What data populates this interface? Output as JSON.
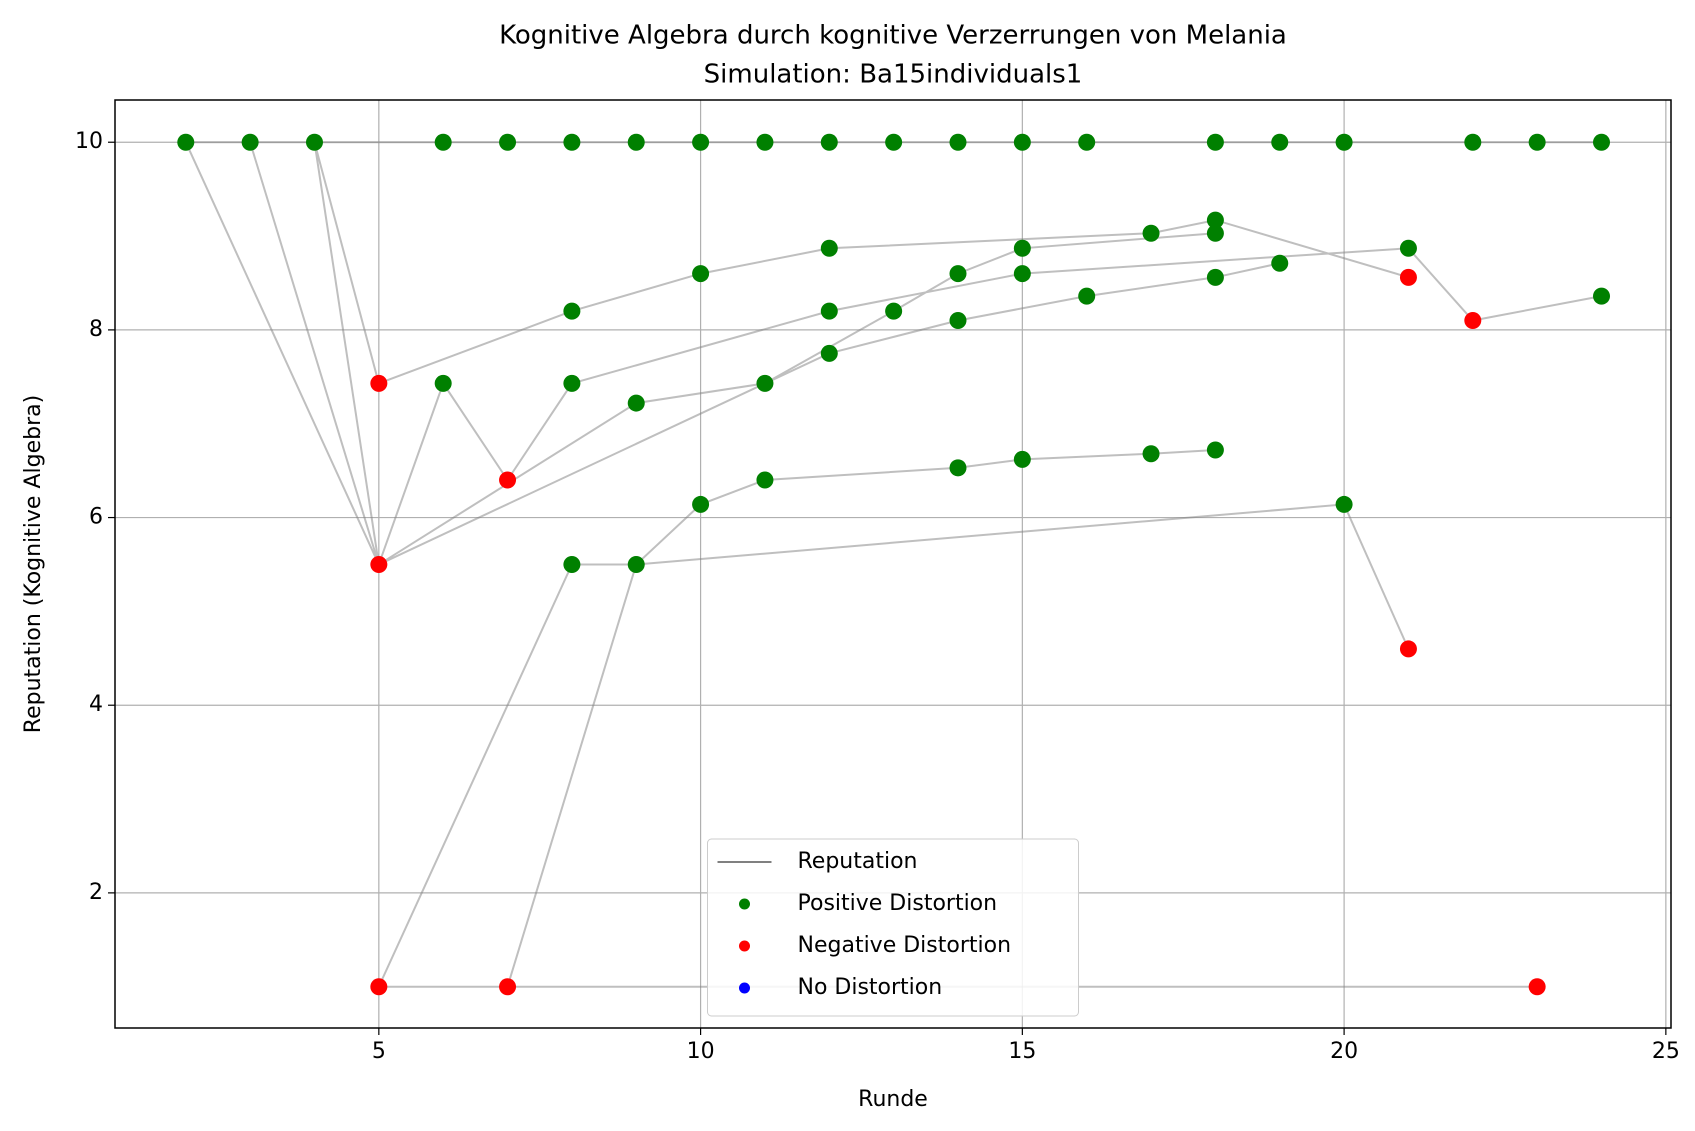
{
  "chart_data": {
    "type": "scatter",
    "title": "Kognitive Algebra durch kognitive Verzerrungen von Melania",
    "subtitle": "Simulation: Ba15individuals1",
    "x_label": "Runde",
    "y_label": "Reputation (Kognitive Algebra)",
    "xlim": [
      0.9,
      25.08
    ],
    "ylim": [
      0.56,
      10.45
    ],
    "xticks": [
      5,
      10,
      15,
      20,
      25
    ],
    "yticks": [
      2,
      4,
      6,
      8,
      10
    ],
    "grid": true,
    "legend": "lower center",
    "series": [
      {
        "name": "Reputation",
        "style": "line",
        "color": "#808080",
        "x": [
          2,
          3,
          4,
          6,
          7,
          8,
          9,
          10,
          11,
          12,
          13,
          14,
          15,
          16,
          18,
          19,
          20,
          22,
          23,
          24,
          null,
          4,
          5,
          8,
          10,
          12,
          17,
          18,
          21,
          null,
          2,
          5,
          6,
          7,
          8,
          12,
          15,
          21,
          22,
          24,
          null,
          3,
          5,
          9,
          11,
          13,
          14,
          15,
          18,
          null,
          4,
          5,
          12,
          14,
          16,
          18,
          19,
          null,
          5,
          8,
          9,
          20,
          21,
          null,
          7,
          9,
          10,
          11,
          14,
          15,
          17,
          18,
          null,
          5,
          7,
          23
        ],
        "y": [
          10,
          10,
          10,
          10,
          10,
          10,
          10,
          10,
          10,
          10,
          10,
          10,
          10,
          10,
          10,
          10,
          10,
          10,
          10,
          10,
          null,
          10,
          7.43,
          8.2,
          8.6,
          8.87,
          9.03,
          9.17,
          8.56,
          null,
          10,
          5.5,
          7.43,
          6.4,
          7.43,
          8.2,
          8.6,
          8.87,
          8.1,
          8.36,
          null,
          10,
          5.5,
          7.22,
          7.43,
          8.2,
          8.6,
          8.87,
          9.03,
          null,
          10,
          5.5,
          7.75,
          8.1,
          8.36,
          8.56,
          8.71,
          null,
          1,
          5.5,
          5.5,
          6.14,
          4.6,
          null,
          1,
          5.5,
          6.14,
          6.4,
          6.53,
          6.62,
          6.68,
          6.72,
          null,
          1,
          1,
          1
        ]
      },
      {
        "name": "Positive Distortion",
        "style": "points",
        "color": "#008000",
        "x": [
          2,
          3,
          4,
          6,
          7,
          8,
          9,
          10,
          11,
          12,
          13,
          14,
          15,
          16,
          18,
          19,
          20,
          22,
          23,
          24,
          8,
          10,
          12,
          17,
          18,
          6,
          8,
          12,
          15,
          21,
          24,
          9,
          11,
          13,
          14,
          15,
          18,
          12,
          14,
          16,
          18,
          19,
          8,
          9,
          10,
          11,
          14,
          15,
          17,
          18,
          20
        ],
        "y": [
          10,
          10,
          10,
          10,
          10,
          10,
          10,
          10,
          10,
          10,
          10,
          10,
          10,
          10,
          10,
          10,
          10,
          10,
          10,
          10,
          8.2,
          8.6,
          8.87,
          9.03,
          9.17,
          7.43,
          7.43,
          8.2,
          8.6,
          8.87,
          8.36,
          7.22,
          7.43,
          8.2,
          8.6,
          8.87,
          9.03,
          7.75,
          8.1,
          8.36,
          8.56,
          8.71,
          5.5,
          5.5,
          6.14,
          6.4,
          6.53,
          6.62,
          6.68,
          6.72,
          6.14
        ]
      },
      {
        "name": "Negative Distortion",
        "style": "points",
        "color": "#ff0000",
        "x": [
          5,
          5,
          7,
          5,
          7,
          23,
          21,
          22,
          21
        ],
        "y": [
          7.43,
          5.5,
          6.4,
          1,
          1,
          1,
          8.56,
          8.1,
          4.6
        ]
      },
      {
        "name": "No Distortion",
        "style": "points",
        "color": "#0000ff",
        "x": [],
        "y": []
      }
    ]
  }
}
